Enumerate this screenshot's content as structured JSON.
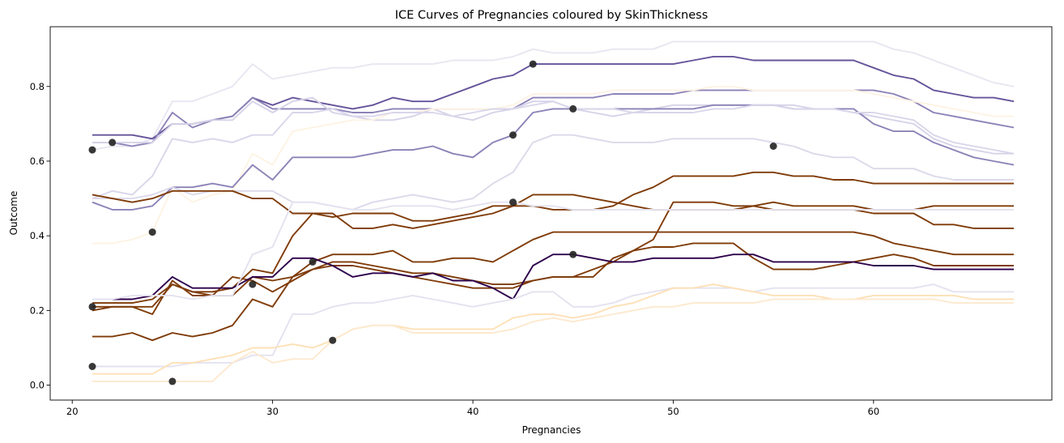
{
  "chart_data": {
    "type": "line",
    "title": "ICE Curves of Pregnancies coloured by SkinThickness",
    "xlabel": "Pregnancies",
    "ylabel": "Outcome",
    "xlim": [
      18.9,
      68.9
    ],
    "ylim": [
      -0.04,
      0.96
    ],
    "xticks": [
      20,
      30,
      40,
      50,
      60
    ],
    "xtick_labels": [
      "20",
      "30",
      "40",
      "50",
      "60"
    ],
    "yticks": [
      0.0,
      0.2,
      0.4,
      0.6,
      0.8
    ],
    "ytick_labels": [
      "0.0",
      "0.2",
      "0.4",
      "0.6",
      "0.8"
    ],
    "grid": false,
    "legend": "none",
    "x": [
      21,
      22,
      23,
      24,
      25,
      26,
      27,
      28,
      29,
      30,
      31,
      32,
      33,
      34,
      35,
      36,
      37,
      38,
      39,
      40,
      41,
      42,
      43,
      44,
      45,
      46,
      47,
      48,
      49,
      50,
      51,
      52,
      53,
      54,
      55,
      56,
      57,
      58,
      59,
      60,
      61,
      62,
      63,
      64,
      65,
      66,
      67
    ],
    "series": [
      {
        "color": "#e8e6f1",
        "values": [
          0.63,
          0.64,
          0.64,
          0.66,
          0.76,
          0.76,
          0.78,
          0.8,
          0.86,
          0.82,
          0.83,
          0.84,
          0.85,
          0.85,
          0.86,
          0.86,
          0.86,
          0.86,
          0.87,
          0.87,
          0.87,
          0.88,
          0.9,
          0.89,
          0.89,
          0.89,
          0.9,
          0.9,
          0.9,
          0.92,
          0.92,
          0.92,
          0.92,
          0.92,
          0.92,
          0.92,
          0.92,
          0.92,
          0.92,
          0.92,
          0.9,
          0.89,
          0.87,
          0.85,
          0.83,
          0.81,
          0.8
        ]
      },
      {
        "color": "#65539a",
        "values": [
          0.67,
          0.67,
          0.67,
          0.66,
          0.7,
          0.7,
          0.71,
          0.72,
          0.77,
          0.75,
          0.77,
          0.76,
          0.75,
          0.74,
          0.75,
          0.77,
          0.76,
          0.76,
          0.78,
          0.8,
          0.82,
          0.83,
          0.86,
          0.86,
          0.86,
          0.86,
          0.86,
          0.86,
          0.86,
          0.86,
          0.87,
          0.88,
          0.88,
          0.87,
          0.87,
          0.87,
          0.87,
          0.87,
          0.87,
          0.85,
          0.83,
          0.82,
          0.79,
          0.78,
          0.77,
          0.77,
          0.76
        ]
      },
      {
        "color": "#8d82b7",
        "values": [
          0.65,
          0.65,
          0.64,
          0.65,
          0.73,
          0.69,
          0.71,
          0.72,
          0.77,
          0.74,
          0.74,
          0.74,
          0.74,
          0.73,
          0.73,
          0.74,
          0.74,
          0.74,
          0.74,
          0.74,
          0.74,
          0.74,
          0.77,
          0.77,
          0.77,
          0.77,
          0.78,
          0.78,
          0.78,
          0.78,
          0.79,
          0.79,
          0.79,
          0.79,
          0.79,
          0.79,
          0.79,
          0.79,
          0.79,
          0.79,
          0.78,
          0.76,
          0.73,
          0.72,
          0.71,
          0.7,
          0.69
        ]
      },
      {
        "color": "#d6d3e8",
        "values": [
          0.65,
          0.65,
          0.65,
          0.65,
          0.7,
          0.7,
          0.71,
          0.71,
          0.76,
          0.73,
          0.76,
          0.77,
          0.73,
          0.72,
          0.71,
          0.71,
          0.72,
          0.74,
          0.72,
          0.71,
          0.73,
          0.74,
          0.76,
          0.76,
          0.74,
          0.73,
          0.72,
          0.73,
          0.74,
          0.75,
          0.75,
          0.75,
          0.75,
          0.75,
          0.75,
          0.75,
          0.74,
          0.74,
          0.73,
          0.72,
          0.71,
          0.7,
          0.66,
          0.64,
          0.63,
          0.62,
          0.62
        ]
      },
      {
        "color": "#fdf3e3",
        "values": [
          0.38,
          0.38,
          0.39,
          0.41,
          0.53,
          0.49,
          0.51,
          0.52,
          0.62,
          0.59,
          0.68,
          0.69,
          0.7,
          0.71,
          0.71,
          0.73,
          0.73,
          0.74,
          0.74,
          0.74,
          0.74,
          0.75,
          0.78,
          0.78,
          0.78,
          0.78,
          0.79,
          0.79,
          0.79,
          0.79,
          0.79,
          0.8,
          0.8,
          0.79,
          0.79,
          0.79,
          0.79,
          0.79,
          0.79,
          0.78,
          0.77,
          0.76,
          0.75,
          0.74,
          0.73,
          0.72,
          0.72
        ]
      },
      {
        "color": "#8d82b7",
        "values": [
          0.49,
          0.47,
          0.47,
          0.48,
          0.53,
          0.53,
          0.54,
          0.53,
          0.59,
          0.55,
          0.61,
          0.61,
          0.61,
          0.61,
          0.62,
          0.63,
          0.63,
          0.64,
          0.62,
          0.61,
          0.65,
          0.67,
          0.73,
          0.74,
          0.74,
          0.74,
          0.74,
          0.74,
          0.74,
          0.74,
          0.74,
          0.75,
          0.75,
          0.75,
          0.75,
          0.74,
          0.74,
          0.74,
          0.74,
          0.7,
          0.68,
          0.68,
          0.65,
          0.63,
          0.61,
          0.6,
          0.59
        ]
      },
      {
        "color": "#d9d6ea",
        "values": [
          0.5,
          0.52,
          0.51,
          0.56,
          0.66,
          0.65,
          0.66,
          0.65,
          0.67,
          0.67,
          0.73,
          0.73,
          0.74,
          0.72,
          0.72,
          0.73,
          0.73,
          0.73,
          0.72,
          0.73,
          0.74,
          0.74,
          0.75,
          0.76,
          0.74,
          0.74,
          0.74,
          0.73,
          0.73,
          0.73,
          0.73,
          0.74,
          0.74,
          0.75,
          0.75,
          0.74,
          0.74,
          0.74,
          0.73,
          0.73,
          0.72,
          0.71,
          0.67,
          0.65,
          0.64,
          0.63,
          0.62
        ]
      },
      {
        "color": "#dcd9ea",
        "values": [
          0.5,
          0.5,
          0.5,
          0.51,
          0.53,
          0.51,
          0.52,
          0.52,
          0.52,
          0.52,
          0.49,
          0.49,
          0.48,
          0.47,
          0.49,
          0.5,
          0.51,
          0.5,
          0.49,
          0.5,
          0.54,
          0.57,
          0.65,
          0.67,
          0.67,
          0.66,
          0.65,
          0.65,
          0.65,
          0.66,
          0.66,
          0.66,
          0.66,
          0.66,
          0.65,
          0.64,
          0.62,
          0.61,
          0.61,
          0.58,
          0.58,
          0.58,
          0.56,
          0.55,
          0.55,
          0.55,
          0.55
        ]
      },
      {
        "color": "#7f3b08",
        "values": [
          0.51,
          0.5,
          0.49,
          0.5,
          0.52,
          0.52,
          0.52,
          0.52,
          0.5,
          0.5,
          0.46,
          0.46,
          0.46,
          0.42,
          0.42,
          0.43,
          0.42,
          0.43,
          0.44,
          0.45,
          0.46,
          0.48,
          0.51,
          0.51,
          0.51,
          0.5,
          0.49,
          0.48,
          0.47,
          0.47,
          0.47,
          0.47,
          0.47,
          0.48,
          0.47,
          0.47,
          0.47,
          0.47,
          0.47,
          0.46,
          0.46,
          0.46,
          0.43,
          0.43,
          0.42,
          0.42,
          0.42
        ]
      },
      {
        "color": "#7f3b08",
        "values": [
          0.2,
          0.21,
          0.21,
          0.21,
          0.27,
          0.25,
          0.25,
          0.26,
          0.31,
          0.3,
          0.4,
          0.46,
          0.45,
          0.46,
          0.46,
          0.46,
          0.44,
          0.44,
          0.45,
          0.46,
          0.48,
          0.48,
          0.48,
          0.47,
          0.47,
          0.47,
          0.48,
          0.51,
          0.53,
          0.56,
          0.56,
          0.56,
          0.56,
          0.57,
          0.57,
          0.56,
          0.56,
          0.55,
          0.55,
          0.54,
          0.54,
          0.54,
          0.54,
          0.54,
          0.54,
          0.54,
          0.54
        ]
      },
      {
        "color": "#7f3b08",
        "values": [
          0.22,
          0.22,
          0.22,
          0.23,
          0.27,
          0.25,
          0.24,
          0.24,
          0.29,
          0.28,
          0.29,
          0.31,
          0.33,
          0.33,
          0.32,
          0.31,
          0.3,
          0.3,
          0.29,
          0.28,
          0.27,
          0.27,
          0.28,
          0.29,
          0.29,
          0.29,
          0.34,
          0.36,
          0.37,
          0.37,
          0.38,
          0.38,
          0.38,
          0.34,
          0.31,
          0.31,
          0.31,
          0.32,
          0.33,
          0.34,
          0.35,
          0.34,
          0.32,
          0.32,
          0.32,
          0.32,
          0.32
        ]
      },
      {
        "color": "#7f3b08",
        "values": [
          0.21,
          0.21,
          0.21,
          0.19,
          0.28,
          0.24,
          0.24,
          0.29,
          0.28,
          0.25,
          0.28,
          0.31,
          0.32,
          0.32,
          0.31,
          0.3,
          0.29,
          0.28,
          0.27,
          0.26,
          0.26,
          0.26,
          0.28,
          0.29,
          0.29,
          0.31,
          0.33,
          0.36,
          0.39,
          0.49,
          0.49,
          0.49,
          0.48,
          0.48,
          0.49,
          0.48,
          0.48,
          0.48,
          0.48,
          0.47,
          0.47,
          0.47,
          0.48,
          0.48,
          0.48,
          0.48,
          0.48
        ]
      },
      {
        "color": "#7f3b08",
        "values": [
          0.13,
          0.13,
          0.14,
          0.12,
          0.14,
          0.13,
          0.14,
          0.16,
          0.23,
          0.21,
          0.29,
          0.33,
          0.35,
          0.35,
          0.35,
          0.36,
          0.33,
          0.33,
          0.34,
          0.34,
          0.33,
          0.36,
          0.39,
          0.41,
          0.41,
          0.41,
          0.41,
          0.41,
          0.41,
          0.41,
          0.41,
          0.41,
          0.41,
          0.41,
          0.41,
          0.41,
          0.41,
          0.41,
          0.41,
          0.4,
          0.38,
          0.37,
          0.36,
          0.35,
          0.35,
          0.35,
          0.35
        ]
      },
      {
        "color": "#2d004b",
        "values": [
          0.23,
          0.23,
          0.23,
          0.24,
          0.29,
          0.26,
          0.26,
          0.26,
          0.29,
          0.29,
          0.34,
          0.34,
          0.32,
          0.29,
          0.3,
          0.3,
          0.29,
          0.3,
          0.28,
          0.28,
          0.26,
          0.23,
          0.32,
          0.35,
          0.35,
          0.34,
          0.33,
          0.33,
          0.34,
          0.34,
          0.34,
          0.34,
          0.35,
          0.35,
          0.33,
          0.33,
          0.33,
          0.33,
          0.33,
          0.32,
          0.32,
          0.32,
          0.31,
          0.31,
          0.31,
          0.31,
          0.31
        ]
      },
      {
        "color": "#e4e2ef",
        "values": [
          0.23,
          0.23,
          0.24,
          0.24,
          0.24,
          0.23,
          0.24,
          0.24,
          0.35,
          0.37,
          0.49,
          0.49,
          0.48,
          0.47,
          0.47,
          0.48,
          0.48,
          0.48,
          0.47,
          0.48,
          0.49,
          0.49,
          0.48,
          0.48,
          0.47,
          0.47,
          0.47,
          0.47,
          0.47,
          0.47,
          0.47,
          0.47,
          0.47,
          0.47,
          0.47,
          0.47,
          0.47,
          0.47,
          0.47,
          0.47,
          0.47,
          0.47,
          0.47,
          0.47,
          0.47,
          0.47,
          0.47
        ]
      },
      {
        "color": "#e4e2ef",
        "values": [
          0.05,
          0.05,
          0.05,
          0.05,
          0.05,
          0.06,
          0.06,
          0.06,
          0.08,
          0.08,
          0.19,
          0.19,
          0.21,
          0.22,
          0.22,
          0.23,
          0.24,
          0.23,
          0.22,
          0.21,
          0.22,
          0.23,
          0.25,
          0.25,
          0.21,
          0.21,
          0.22,
          0.24,
          0.25,
          0.26,
          0.26,
          0.26,
          0.26,
          0.25,
          0.26,
          0.26,
          0.26,
          0.26,
          0.26,
          0.26,
          0.26,
          0.26,
          0.27,
          0.25,
          0.25,
          0.25,
          0.25
        ]
      },
      {
        "color": "#fee0b6",
        "values": [
          0.03,
          0.03,
          0.03,
          0.03,
          0.06,
          0.06,
          0.07,
          0.08,
          0.1,
          0.1,
          0.11,
          0.1,
          0.12,
          0.15,
          0.16,
          0.16,
          0.15,
          0.15,
          0.15,
          0.15,
          0.15,
          0.18,
          0.19,
          0.19,
          0.18,
          0.19,
          0.21,
          0.22,
          0.24,
          0.26,
          0.26,
          0.27,
          0.26,
          0.25,
          0.24,
          0.24,
          0.24,
          0.23,
          0.23,
          0.24,
          0.24,
          0.24,
          0.24,
          0.24,
          0.23,
          0.23,
          0.23
        ]
      },
      {
        "color": "#fde9cf",
        "values": [
          0.01,
          0.01,
          0.01,
          0.01,
          0.01,
          0.01,
          0.01,
          0.06,
          0.09,
          0.06,
          0.07,
          0.07,
          0.12,
          0.15,
          0.16,
          0.16,
          0.14,
          0.14,
          0.14,
          0.14,
          0.14,
          0.15,
          0.17,
          0.18,
          0.17,
          0.18,
          0.19,
          0.2,
          0.21,
          0.21,
          0.22,
          0.22,
          0.22,
          0.22,
          0.23,
          0.23,
          0.23,
          0.23,
          0.23,
          0.23,
          0.23,
          0.23,
          0.23,
          0.22,
          0.22,
          0.22,
          0.22
        ]
      }
    ],
    "points": [
      {
        "x": 21,
        "y": 0.63
      },
      {
        "x": 22,
        "y": 0.65
      },
      {
        "x": 24,
        "y": 0.41
      },
      {
        "x": 21,
        "y": 0.21
      },
      {
        "x": 29,
        "y": 0.27
      },
      {
        "x": 32,
        "y": 0.33
      },
      {
        "x": 21,
        "y": 0.05
      },
      {
        "x": 25,
        "y": 0.01
      },
      {
        "x": 33,
        "y": 0.12
      },
      {
        "x": 42,
        "y": 0.67
      },
      {
        "x": 42,
        "y": 0.49
      },
      {
        "x": 43,
        "y": 0.86
      },
      {
        "x": 45,
        "y": 0.74
      },
      {
        "x": 45,
        "y": 0.35
      },
      {
        "x": 55,
        "y": 0.64
      }
    ]
  }
}
